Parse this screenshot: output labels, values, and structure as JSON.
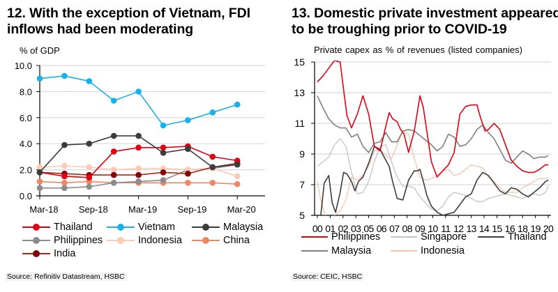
{
  "chart_data": [
    {
      "type": "line",
      "title": "12. With the exception of Vietnam, FDI inflows had been moderating",
      "ylabel": "% of GDP",
      "xlabel": "",
      "ylim": [
        0,
        10
      ],
      "yticks": [
        "0.0",
        "2.0",
        "4.0",
        "6.0",
        "8.0",
        "10.0"
      ],
      "ytick_values": [
        0,
        2,
        4,
        6,
        8,
        10
      ],
      "x": [
        "Mar-18",
        "Jun-18",
        "Sep-18",
        "Dec-18",
        "Mar-19",
        "Jun-19",
        "Sep-19",
        "Dec-19",
        "Mar-20"
      ],
      "xtick_labels": [
        "Mar-18",
        "Sep-18",
        "Mar-19",
        "Sep-19",
        "Mar-20"
      ],
      "grid": true,
      "markers": true,
      "legend_position": "bottom",
      "series": [
        {
          "name": "Thailand",
          "color": "#e00012",
          "values": [
            1.8,
            1.5,
            1.4,
            3.4,
            3.7,
            3.7,
            3.8,
            3.0,
            2.7
          ]
        },
        {
          "name": "Vietnam",
          "color": "#1ab0ea",
          "values": [
            9.0,
            9.2,
            8.8,
            7.3,
            8.0,
            5.4,
            5.8,
            6.4,
            7.0
          ]
        },
        {
          "name": "Malaysia",
          "color": "#3c3c3c",
          "values": [
            1.8,
            3.9,
            4.0,
            4.6,
            4.6,
            3.3,
            3.6,
            2.2,
            2.4
          ]
        },
        {
          "name": "Philippines",
          "color": "#8c8c8c",
          "values": [
            0.6,
            0.6,
            0.7,
            1.0,
            1.1,
            1.2,
            2.0,
            2.1,
            2.4
          ]
        },
        {
          "name": "Indonesia",
          "color": "#fbcbb6",
          "values": [
            2.2,
            2.3,
            2.2,
            2.0,
            2.1,
            2.1,
            2.0,
            2.1,
            1.5
          ]
        },
        {
          "name": "China",
          "color": "#ef8765",
          "values": [
            1.1,
            1.0,
            1.1,
            1.0,
            1.0,
            1.0,
            1.0,
            1.0,
            0.9
          ]
        },
        {
          "name": "India",
          "color": "#86000c",
          "line_color": "#a52a16",
          "values": [
            1.8,
            1.7,
            1.6,
            1.6,
            1.6,
            1.8,
            1.7,
            2.2,
            2.5
          ]
        }
      ],
      "source": "Source: Refinitiv Datastream, HSBC"
    },
    {
      "type": "line",
      "title": "13. Domestic private investment appeared to be troughing prior to COVID-19",
      "ylabel": "Private capex as % of revenues (listed companies)",
      "xlabel": "",
      "ylim": [
        5,
        15
      ],
      "yticks": [
        "5",
        "7",
        "9",
        "11",
        "13",
        "15"
      ],
      "ytick_values": [
        5,
        7,
        9,
        11,
        13,
        15
      ],
      "xlim": [
        2000,
        2020.25
      ],
      "xtick_labels": [
        "00",
        "01",
        "02",
        "03",
        "05",
        "06",
        "07",
        "08",
        "09",
        "10",
        "11",
        "12",
        "13",
        "14",
        "15",
        "16",
        "18",
        "19",
        "20"
      ],
      "grid": true,
      "markers": false,
      "legend_position": "bottom",
      "series": [
        {
          "name": "Philippines",
          "color": "#e00012",
          "x": [
            2000,
            2000.5,
            2001,
            2001.5,
            2002,
            2002.3,
            2002.6,
            2003,
            2003.5,
            2004,
            2004.5,
            2005,
            2005.5,
            2006,
            2006.3,
            2006.6,
            2007,
            2007.3,
            2007.6,
            2008,
            2008.5,
            2009,
            2009.3,
            2009.7,
            2010,
            2010.5,
            2011,
            2011.5,
            2012,
            2012.5,
            2013,
            2013.5,
            2014,
            2014.3,
            2014.7,
            2015,
            2015.5,
            2016,
            2016.5,
            2017,
            2017.5,
            2018,
            2018.5,
            2019,
            2019.5,
            2020,
            2020.25
          ],
          "values": [
            13.7,
            14.1,
            14.6,
            15.1,
            15.0,
            13.2,
            11.5,
            10.7,
            11.6,
            12.8,
            11.6,
            9.5,
            9.2,
            10.8,
            11.7,
            11.3,
            11.1,
            10.6,
            10.3,
            9.1,
            10.5,
            12.8,
            12.0,
            10.0,
            8.5,
            7.5,
            7.9,
            8.3,
            9.1,
            11.6,
            12.1,
            12.2,
            12.2,
            11.4,
            10.5,
            10.6,
            11.0,
            10.6,
            9.6,
            8.6,
            8.2,
            7.9,
            7.8,
            7.8,
            8.0,
            8.3,
            8.3
          ]
        },
        {
          "name": "Singapore",
          "color": "#c3c3c3",
          "x": [
            2000,
            2000.5,
            2001,
            2001.5,
            2002,
            2002.5,
            2003,
            2003.5,
            2004,
            2004.5,
            2005,
            2005.5,
            2006,
            2006.5,
            2007,
            2007.5,
            2008,
            2008.5,
            2009,
            2009.5,
            2010,
            2010.5,
            2011,
            2011.5,
            2012,
            2012.5,
            2013,
            2013.5,
            2014,
            2014.5,
            2015,
            2015.5,
            2016,
            2016.5,
            2017,
            2017.5,
            2018,
            2018.5,
            2019,
            2019.5,
            2020,
            2020.25
          ],
          "values": [
            8.2,
            8.5,
            8.8,
            9.6,
            10.0,
            9.5,
            7.8,
            6.4,
            6.5,
            7.2,
            8.5,
            9.5,
            9.6,
            8.5,
            7.5,
            6.9,
            6.9,
            6.8,
            6.2,
            5.8,
            5.4,
            5.3,
            5.6,
            6.2,
            6.5,
            6.4,
            6.3,
            6.1,
            5.9,
            5.9,
            6.1,
            6.2,
            6.3,
            6.4,
            6.3,
            6.2,
            6.1,
            6.3,
            6.4,
            6.3,
            6.5,
            6.9
          ]
        },
        {
          "name": "Thailand",
          "color": "#3c3c3c",
          "x": [
            2000.3,
            2000.6,
            2001,
            2001.3,
            2001.6,
            2002,
            2002.3,
            2002.6,
            2003,
            2003.3,
            2003.6,
            2004,
            2004.5,
            2005,
            2005.5,
            2006,
            2006.3,
            2006.6,
            2007,
            2007.5,
            2008,
            2008.5,
            2008.8,
            2009,
            2009.3,
            2009.6,
            2010,
            2010.5,
            2011,
            2011.5,
            2012,
            2012.5,
            2013,
            2013.5,
            2014,
            2014.5,
            2015,
            2015.5,
            2016,
            2016.5,
            2017,
            2017.5,
            2018,
            2018.5,
            2019,
            2019.5,
            2020,
            2020.25
          ],
          "values": [
            5.0,
            7.1,
            7.6,
            5.8,
            5.2,
            6.5,
            7.8,
            7.7,
            7.2,
            6.6,
            7.2,
            7.5,
            8.4,
            9.5,
            9.3,
            8.6,
            8.2,
            7.2,
            6.1,
            6.0,
            7.3,
            7.9,
            7.9,
            8.0,
            7.2,
            6.3,
            5.6,
            5.2,
            5.0,
            5.1,
            5.2,
            5.7,
            6.2,
            6.4,
            7.3,
            7.8,
            7.6,
            7.1,
            6.6,
            6.4,
            6.8,
            6.7,
            6.4,
            6.2,
            6.5,
            6.8,
            7.2,
            7.3
          ]
        },
        {
          "name": "Malaysia",
          "color": "#7f7f7f",
          "x": [
            2000,
            2000.5,
            2001,
            2001.5,
            2002,
            2002.5,
            2003,
            2003.5,
            2004,
            2004.5,
            2005,
            2005.5,
            2006,
            2006.5,
            2007,
            2007.5,
            2008,
            2008.5,
            2009,
            2009.5,
            2010,
            2010.5,
            2011,
            2011.5,
            2012,
            2012.5,
            2013,
            2013.5,
            2014,
            2014.5,
            2015,
            2015.5,
            2016,
            2016.5,
            2017,
            2017.5,
            2018,
            2018.5,
            2019,
            2019.5,
            2020,
            2020.25
          ],
          "values": [
            12.8,
            12.0,
            11.3,
            10.9,
            10.7,
            10.7,
            10.1,
            10.3,
            9.5,
            9.1,
            9.7,
            9.8,
            10.4,
            9.8,
            9.8,
            10.5,
            10.6,
            10.5,
            10.2,
            9.9,
            9.6,
            9.2,
            9.5,
            10.3,
            10.1,
            9.5,
            9.6,
            10.0,
            10.6,
            10.9,
            10.4,
            10.0,
            9.3,
            8.6,
            8.4,
            8.8,
            9.2,
            9.0,
            8.7,
            8.8,
            8.8,
            8.9
          ]
        },
        {
          "name": "Indonesia",
          "color": "#f7c3a9",
          "x": [
            2000,
            2000.3,
            2000.7,
            2001,
            2001.5,
            2002,
            2002.5,
            2003,
            2003.5,
            2004,
            2004.5,
            2005,
            2005.5,
            2006,
            2006.5,
            2007,
            2007.5,
            2008,
            2008.5,
            2009,
            2009.5,
            2010,
            2010.5,
            2011,
            2011.5,
            2012,
            2012.5,
            2013,
            2013.5,
            2014,
            2014.5,
            2015,
            2015.5,
            2016,
            2016.5,
            2017,
            2017.5,
            2018,
            2018.5,
            2019,
            2019.5,
            2020,
            2020.25
          ],
          "values": [
            7.2,
            6.0,
            5.0,
            4.6,
            5.0,
            5.3,
            6.0,
            7.5,
            7.3,
            7.6,
            8.2,
            9.2,
            9.3,
            8.9,
            8.7,
            9.6,
            10.5,
            10.3,
            8.7,
            7.5,
            7.3,
            7.4,
            7.6,
            7.9,
            8.0,
            7.6,
            7.7,
            8.0,
            8.3,
            8.2,
            8.1,
            7.5,
            7.2,
            6.8,
            6.5,
            6.5,
            6.5,
            6.8,
            7.0,
            7.2,
            7.4,
            7.4,
            7.4
          ]
        }
      ],
      "source": "Source: CEIC, HSBC"
    }
  ]
}
